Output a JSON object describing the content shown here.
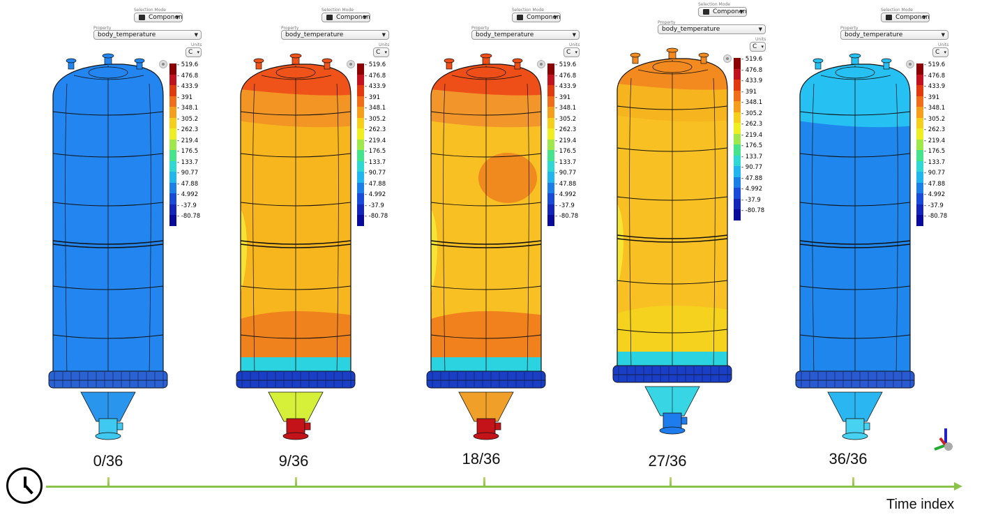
{
  "selection_caption": "Selection Mode",
  "property_caption": "Property",
  "units_caption": "Units",
  "selection_mode_value": "Components",
  "property_value": "body_temperature",
  "units_value": "C",
  "colorbar_ticks": [
    "519.6",
    "476.8",
    "433.9",
    "391",
    "348.1",
    "305.2",
    "262.3",
    "219.4",
    "176.5",
    "133.7",
    "90.77",
    "47.88",
    "4.992",
    "-37.9",
    "-80.78"
  ],
  "colorbar_colors": [
    "#8b0000",
    "#c1121f",
    "#e23a0f",
    "#f06d1a",
    "#f59e1c",
    "#f6cf1c",
    "#eeee22",
    "#9fe84c",
    "#44e38c",
    "#2fd8d2",
    "#22b6ee",
    "#1c7fe8",
    "#1a4ad8",
    "#1326b8",
    "#0a0a9a"
  ],
  "frames": [
    {
      "label": "0/36",
      "upper_head": "#2386f0",
      "top_band": "#2386f0",
      "body": "#2386f0",
      "lower_band": "#2386f0",
      "ring": "#2a62d2",
      "cone": "#2a95ec",
      "nozzle": "#3fc8f0",
      "hot_spot": false
    },
    {
      "label": "9/36",
      "upper_head": "#f0531a",
      "top_band": "#f29525",
      "body": "#f7b51e",
      "lower_band": "#f0821d",
      "ring": "#1a3fc4",
      "cone": "#d6f03a",
      "nozzle": "#c4141a",
      "hot_spot": false
    },
    {
      "label": "18/36",
      "upper_head": "#ee4e18",
      "top_band": "#f2952a",
      "body": "#f8c023",
      "lower_band": "#f0811d",
      "ring": "#1a3fc4",
      "cone": "#f0a029",
      "nozzle": "#c4141a",
      "hot_spot": true
    },
    {
      "label": "27/36",
      "upper_head": "#f28a20",
      "top_band": "#f6b41f",
      "body": "#f8c023",
      "lower_band": "#f4d21e",
      "ring": "#1a3fc4",
      "cone": "#38d6e4",
      "nozzle": "#1e7cec",
      "hot_spot": false
    },
    {
      "label": "36/36",
      "upper_head": "#26c0f2",
      "top_band": "#26c0f2",
      "body": "#1e86ec",
      "lower_band": "#1e86ec",
      "ring": "#2a5ad0",
      "cone": "#2ab6f0",
      "nozzle": "#48d2f2",
      "hot_spot": false
    }
  ],
  "timeline_label": "Time index"
}
